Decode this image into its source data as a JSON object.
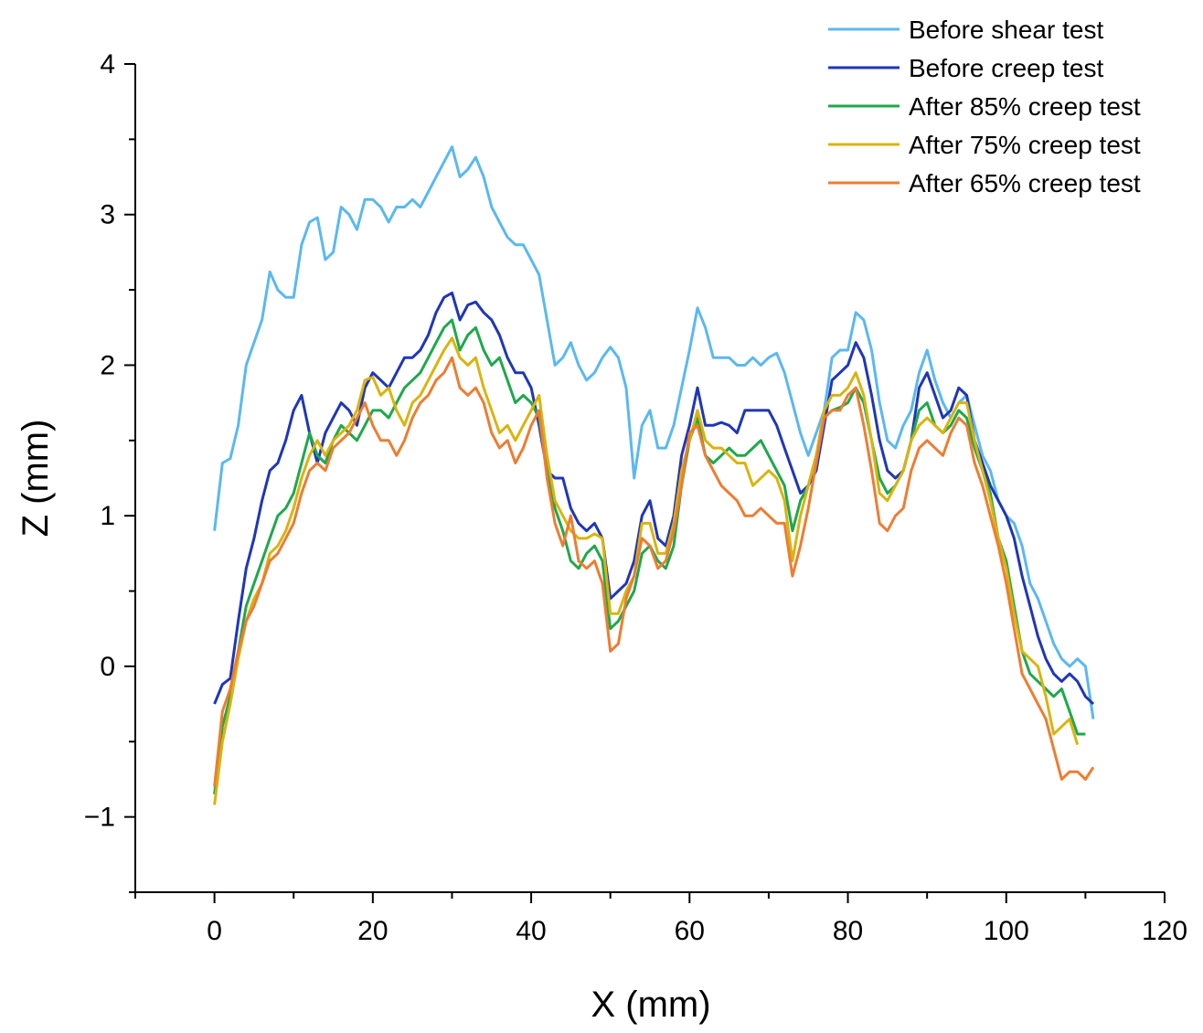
{
  "chart_data": {
    "type": "line",
    "title": "",
    "xlabel": "X (mm)",
    "ylabel": "Z (mm)",
    "xlim": [
      -10,
      120
    ],
    "ylim": [
      -1.5,
      4
    ],
    "xticks": [
      0,
      20,
      40,
      60,
      80,
      100,
      120
    ],
    "xtick_labels": [
      "0",
      "20",
      "40",
      "60",
      "80",
      "100",
      "120"
    ],
    "yticks": [
      -1,
      0,
      1,
      2,
      3,
      4
    ],
    "ytick_labels": [
      "−1",
      "0",
      "1",
      "2",
      "3",
      "4"
    ],
    "grid": false,
    "legend_position": "top-right",
    "series": [
      {
        "name": "Before shear test",
        "color": "#5bb8f0",
        "x": [
          0,
          1,
          2,
          3,
          4,
          5,
          6,
          7,
          8,
          9,
          10,
          11,
          12,
          13,
          14,
          15,
          16,
          17,
          18,
          19,
          20,
          21,
          22,
          23,
          24,
          25,
          26,
          27,
          28,
          29,
          30,
          31,
          32,
          33,
          34,
          35,
          36,
          37,
          38,
          39,
          40,
          41,
          42,
          43,
          44,
          45,
          46,
          47,
          48,
          49,
          50,
          51,
          52,
          53,
          54,
          55,
          56,
          57,
          58,
          59,
          60,
          61,
          62,
          63,
          64,
          65,
          66,
          67,
          68,
          69,
          70,
          71,
          72,
          73,
          74,
          75,
          76,
          77,
          78,
          79,
          80,
          81,
          82,
          83,
          84,
          85,
          86,
          87,
          88,
          89,
          90,
          91,
          92,
          93,
          94,
          95,
          96,
          97,
          98,
          99,
          100,
          101,
          102,
          103,
          104,
          105,
          106,
          107,
          108,
          109,
          110,
          111
        ],
        "y": [
          0.9,
          1.35,
          1.38,
          1.6,
          2.0,
          2.15,
          2.3,
          2.62,
          2.5,
          2.45,
          2.45,
          2.8,
          2.95,
          2.98,
          2.7,
          2.75,
          3.05,
          3.0,
          2.9,
          3.1,
          3.1,
          3.05,
          2.95,
          3.05,
          3.05,
          3.1,
          3.05,
          3.15,
          3.25,
          3.35,
          3.45,
          3.25,
          3.3,
          3.38,
          3.25,
          3.05,
          2.95,
          2.85,
          2.8,
          2.8,
          2.7,
          2.6,
          2.3,
          2.0,
          2.05,
          2.15,
          2.0,
          1.9,
          1.95,
          2.05,
          2.12,
          2.05,
          1.85,
          1.25,
          1.6,
          1.7,
          1.45,
          1.45,
          1.6,
          1.85,
          2.1,
          2.38,
          2.25,
          2.05,
          2.05,
          2.05,
          2.0,
          2.0,
          2.05,
          2.0,
          2.05,
          2.08,
          1.95,
          1.75,
          1.55,
          1.4,
          1.55,
          1.7,
          2.05,
          2.1,
          2.1,
          2.35,
          2.3,
          2.1,
          1.75,
          1.5,
          1.45,
          1.6,
          1.7,
          1.95,
          2.1,
          1.9,
          1.75,
          1.65,
          1.75,
          1.8,
          1.6,
          1.4,
          1.3,
          1.1,
          1.0,
          0.95,
          0.8,
          0.55,
          0.45,
          0.3,
          0.15,
          0.05,
          0.0,
          0.05,
          0.0,
          -0.35
        ]
      },
      {
        "name": "Before creep test",
        "color": "#1f36b8",
        "x": [
          0,
          1,
          2,
          3,
          4,
          5,
          6,
          7,
          8,
          9,
          10,
          11,
          12,
          13,
          14,
          15,
          16,
          17,
          18,
          19,
          20,
          21,
          22,
          23,
          24,
          25,
          26,
          27,
          28,
          29,
          30,
          31,
          32,
          33,
          34,
          35,
          36,
          37,
          38,
          39,
          40,
          41,
          42,
          43,
          44,
          45,
          46,
          47,
          48,
          49,
          50,
          51,
          52,
          53,
          54,
          55,
          56,
          57,
          58,
          59,
          60,
          61,
          62,
          63,
          64,
          65,
          66,
          67,
          68,
          69,
          70,
          71,
          72,
          73,
          74,
          75,
          76,
          77,
          78,
          79,
          80,
          81,
          82,
          83,
          84,
          85,
          86,
          87,
          88,
          89,
          90,
          91,
          92,
          93,
          94,
          95,
          96,
          97,
          98,
          99,
          100,
          101,
          102,
          103,
          104,
          105,
          106,
          107,
          108,
          109,
          110,
          111
        ],
        "y": [
          -0.25,
          -0.12,
          -0.08,
          0.3,
          0.65,
          0.85,
          1.1,
          1.3,
          1.35,
          1.5,
          1.7,
          1.8,
          1.55,
          1.35,
          1.55,
          1.65,
          1.75,
          1.7,
          1.6,
          1.85,
          1.95,
          1.9,
          1.85,
          1.95,
          2.05,
          2.05,
          2.1,
          2.2,
          2.35,
          2.45,
          2.48,
          2.3,
          2.4,
          2.42,
          2.35,
          2.3,
          2.2,
          2.05,
          1.95,
          1.95,
          1.85,
          1.6,
          1.3,
          1.25,
          1.25,
          1.05,
          0.95,
          0.9,
          0.95,
          0.85,
          0.45,
          0.5,
          0.55,
          0.7,
          1.0,
          1.1,
          0.85,
          0.8,
          1.0,
          1.4,
          1.6,
          1.85,
          1.6,
          1.6,
          1.62,
          1.6,
          1.55,
          1.7,
          1.7,
          1.7,
          1.7,
          1.6,
          1.45,
          1.3,
          1.15,
          1.2,
          1.3,
          1.6,
          1.9,
          1.95,
          2.0,
          2.15,
          2.05,
          1.8,
          1.5,
          1.3,
          1.25,
          1.3,
          1.5,
          1.85,
          1.95,
          1.8,
          1.65,
          1.7,
          1.85,
          1.8,
          1.5,
          1.35,
          1.2,
          1.1,
          1.0,
          0.85,
          0.6,
          0.4,
          0.2,
          0.05,
          -0.05,
          -0.1,
          -0.05,
          -0.1,
          -0.2,
          -0.25
        ]
      },
      {
        "name": "After 85% creep test",
        "color": "#1fa84c",
        "x": [
          0,
          1,
          2,
          3,
          4,
          5,
          6,
          7,
          8,
          9,
          10,
          11,
          12,
          13,
          14,
          15,
          16,
          17,
          18,
          19,
          20,
          21,
          22,
          23,
          24,
          25,
          26,
          27,
          28,
          29,
          30,
          31,
          32,
          33,
          34,
          35,
          36,
          37,
          38,
          39,
          40,
          41,
          42,
          43,
          44,
          45,
          46,
          47,
          48,
          49,
          50,
          51,
          52,
          53,
          54,
          55,
          56,
          57,
          58,
          59,
          60,
          61,
          62,
          63,
          64,
          65,
          66,
          67,
          68,
          69,
          70,
          71,
          72,
          73,
          74,
          75,
          76,
          77,
          78,
          79,
          80,
          81,
          82,
          83,
          84,
          85,
          86,
          87,
          88,
          89,
          90,
          91,
          92,
          93,
          94,
          95,
          96,
          97,
          98,
          99,
          100,
          101,
          102,
          103,
          104,
          105,
          106,
          107,
          108,
          109,
          110
        ],
        "y": [
          -0.85,
          -0.4,
          -0.2,
          0.1,
          0.4,
          0.55,
          0.7,
          0.85,
          1.0,
          1.05,
          1.15,
          1.35,
          1.55,
          1.4,
          1.35,
          1.5,
          1.6,
          1.55,
          1.5,
          1.6,
          1.7,
          1.7,
          1.65,
          1.75,
          1.85,
          1.9,
          1.95,
          2.05,
          2.15,
          2.25,
          2.3,
          2.1,
          2.2,
          2.25,
          2.1,
          2.0,
          2.05,
          1.9,
          1.75,
          1.8,
          1.75,
          1.65,
          1.3,
          1.05,
          0.9,
          0.7,
          0.65,
          0.75,
          0.8,
          0.7,
          0.25,
          0.3,
          0.4,
          0.5,
          0.75,
          0.8,
          0.7,
          0.65,
          0.8,
          1.2,
          1.5,
          1.65,
          1.4,
          1.35,
          1.4,
          1.45,
          1.4,
          1.4,
          1.45,
          1.5,
          1.4,
          1.3,
          1.2,
          0.9,
          1.1,
          1.2,
          1.4,
          1.65,
          1.7,
          1.72,
          1.75,
          1.85,
          1.75,
          1.5,
          1.25,
          1.15,
          1.2,
          1.3,
          1.5,
          1.7,
          1.75,
          1.6,
          1.55,
          1.6,
          1.7,
          1.65,
          1.45,
          1.3,
          1.15,
          0.85,
          0.7,
          0.4,
          0.1,
          -0.05,
          -0.1,
          -0.15,
          -0.2,
          -0.15,
          -0.3,
          -0.45,
          -0.45
        ]
      },
      {
        "name": "After 75% creep test",
        "color": "#d9b40f",
        "x": [
          0,
          1,
          2,
          3,
          4,
          5,
          6,
          7,
          8,
          9,
          10,
          11,
          12,
          13,
          14,
          15,
          16,
          17,
          18,
          19,
          20,
          21,
          22,
          23,
          24,
          25,
          26,
          27,
          28,
          29,
          30,
          31,
          32,
          33,
          34,
          35,
          36,
          37,
          38,
          39,
          40,
          41,
          42,
          43,
          44,
          45,
          46,
          47,
          48,
          49,
          50,
          51,
          52,
          53,
          54,
          55,
          56,
          57,
          58,
          59,
          60,
          61,
          62,
          63,
          64,
          65,
          66,
          67,
          68,
          69,
          70,
          71,
          72,
          73,
          74,
          75,
          76,
          77,
          78,
          79,
          80,
          81,
          82,
          83,
          84,
          85,
          86,
          87,
          88,
          89,
          90,
          91,
          92,
          93,
          94,
          95,
          96,
          97,
          98,
          99,
          100,
          101,
          102,
          103,
          104,
          105,
          106,
          107,
          108,
          109
        ],
        "y": [
          -0.92,
          -0.5,
          -0.25,
          0.05,
          0.3,
          0.45,
          0.55,
          0.75,
          0.8,
          0.9,
          1.05,
          1.25,
          1.4,
          1.5,
          1.4,
          1.5,
          1.55,
          1.6,
          1.7,
          1.9,
          1.92,
          1.8,
          1.85,
          1.7,
          1.6,
          1.75,
          1.8,
          1.9,
          2.0,
          2.1,
          2.18,
          2.05,
          2.0,
          2.05,
          1.85,
          1.7,
          1.55,
          1.6,
          1.5,
          1.6,
          1.7,
          1.8,
          1.4,
          1.1,
          1.0,
          0.9,
          0.85,
          0.85,
          0.88,
          0.85,
          0.35,
          0.35,
          0.5,
          0.6,
          0.95,
          0.95,
          0.75,
          0.75,
          0.95,
          1.3,
          1.5,
          1.7,
          1.5,
          1.45,
          1.45,
          1.4,
          1.35,
          1.35,
          1.2,
          1.25,
          1.3,
          1.25,
          1.1,
          0.7,
          1.0,
          1.2,
          1.4,
          1.7,
          1.8,
          1.8,
          1.85,
          1.95,
          1.8,
          1.5,
          1.15,
          1.1,
          1.2,
          1.3,
          1.5,
          1.6,
          1.65,
          1.6,
          1.55,
          1.65,
          1.75,
          1.75,
          1.5,
          1.3,
          1.1,
          0.85,
          0.65,
          0.35,
          0.1,
          0.05,
          0.0,
          -0.2,
          -0.45,
          -0.4,
          -0.35,
          -0.52
        ]
      },
      {
        "name": "After 65% creep test",
        "color": "#ec7d33",
        "x": [
          0,
          1,
          2,
          3,
          4,
          5,
          6,
          7,
          8,
          9,
          10,
          11,
          12,
          13,
          14,
          15,
          16,
          17,
          18,
          19,
          20,
          21,
          22,
          23,
          24,
          25,
          26,
          27,
          28,
          29,
          30,
          31,
          32,
          33,
          34,
          35,
          36,
          37,
          38,
          39,
          40,
          41,
          42,
          43,
          44,
          45,
          46,
          47,
          48,
          49,
          50,
          51,
          52,
          53,
          54,
          55,
          56,
          57,
          58,
          59,
          60,
          61,
          62,
          63,
          64,
          65,
          66,
          67,
          68,
          69,
          70,
          71,
          72,
          73,
          74,
          75,
          76,
          77,
          78,
          79,
          80,
          81,
          82,
          83,
          84,
          85,
          86,
          87,
          88,
          89,
          90,
          91,
          92,
          93,
          94,
          95,
          96,
          97,
          98,
          99,
          100,
          101,
          102,
          103,
          104,
          105,
          106,
          107,
          108,
          109,
          110,
          111
        ],
        "y": [
          -0.8,
          -0.3,
          -0.15,
          0.1,
          0.3,
          0.4,
          0.55,
          0.7,
          0.75,
          0.85,
          0.95,
          1.15,
          1.3,
          1.35,
          1.3,
          1.45,
          1.5,
          1.55,
          1.65,
          1.75,
          1.6,
          1.5,
          1.5,
          1.4,
          1.5,
          1.65,
          1.75,
          1.8,
          1.9,
          1.95,
          2.05,
          1.85,
          1.8,
          1.85,
          1.75,
          1.55,
          1.45,
          1.5,
          1.35,
          1.45,
          1.6,
          1.7,
          1.25,
          0.95,
          0.8,
          1.0,
          0.7,
          0.65,
          0.7,
          0.55,
          0.1,
          0.15,
          0.45,
          0.6,
          0.85,
          0.8,
          0.65,
          0.7,
          0.9,
          1.2,
          1.55,
          1.6,
          1.4,
          1.3,
          1.2,
          1.15,
          1.1,
          1.0,
          1.0,
          1.05,
          1.0,
          0.95,
          0.95,
          0.6,
          0.8,
          1.05,
          1.35,
          1.65,
          1.7,
          1.7,
          1.8,
          1.85,
          1.6,
          1.3,
          0.95,
          0.9,
          1.0,
          1.05,
          1.3,
          1.45,
          1.5,
          1.45,
          1.4,
          1.55,
          1.65,
          1.6,
          1.35,
          1.2,
          1.0,
          0.8,
          0.55,
          0.25,
          -0.05,
          -0.15,
          -0.25,
          -0.35,
          -0.55,
          -0.75,
          -0.7,
          -0.7,
          -0.75,
          -0.67
        ]
      }
    ]
  }
}
